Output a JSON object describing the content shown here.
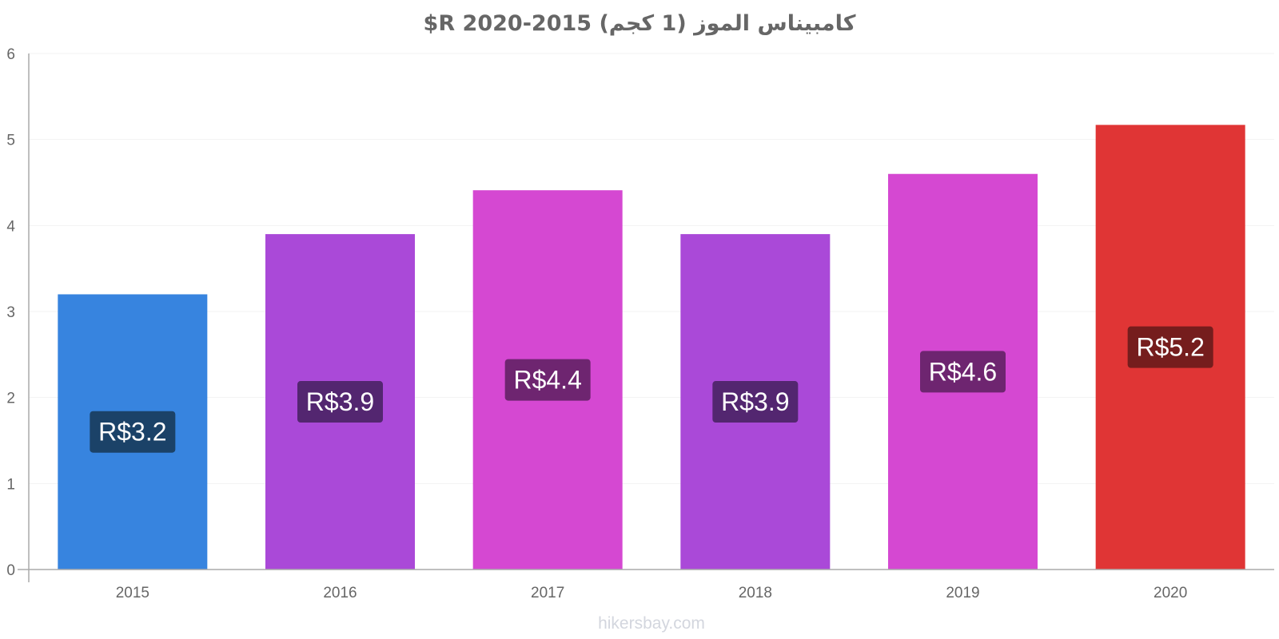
{
  "chart_data": {
    "type": "bar",
    "title": "كامبيناس الموز (1 كجم) 2015-2020 R$",
    "categories": [
      "2015",
      "2016",
      "2017",
      "2018",
      "2019",
      "2020"
    ],
    "values": [
      3.2,
      3.9,
      4.41,
      3.9,
      4.6,
      5.17
    ],
    "value_labels": [
      "R$3.2",
      "R$3.9",
      "R$4.4",
      "R$3.9",
      "R$4.6",
      "R$5.2"
    ],
    "bar_colors": [
      "#3784df",
      "#aa49d8",
      "#d548d2",
      "#aa49d8",
      "#d548d2",
      "#e03535"
    ],
    "label_bg_colors": [
      "#1b4268",
      "#532670",
      "#6e2570",
      "#532670",
      "#6e2570",
      "#751d1d"
    ],
    "ylim": [
      0,
      6
    ],
    "yticks": [
      "0",
      "1",
      "2",
      "3",
      "4",
      "5",
      "6"
    ],
    "xlabel": "",
    "ylabel": "",
    "grid": true,
    "legend": "none"
  },
  "watermark": "hikersbay.com"
}
